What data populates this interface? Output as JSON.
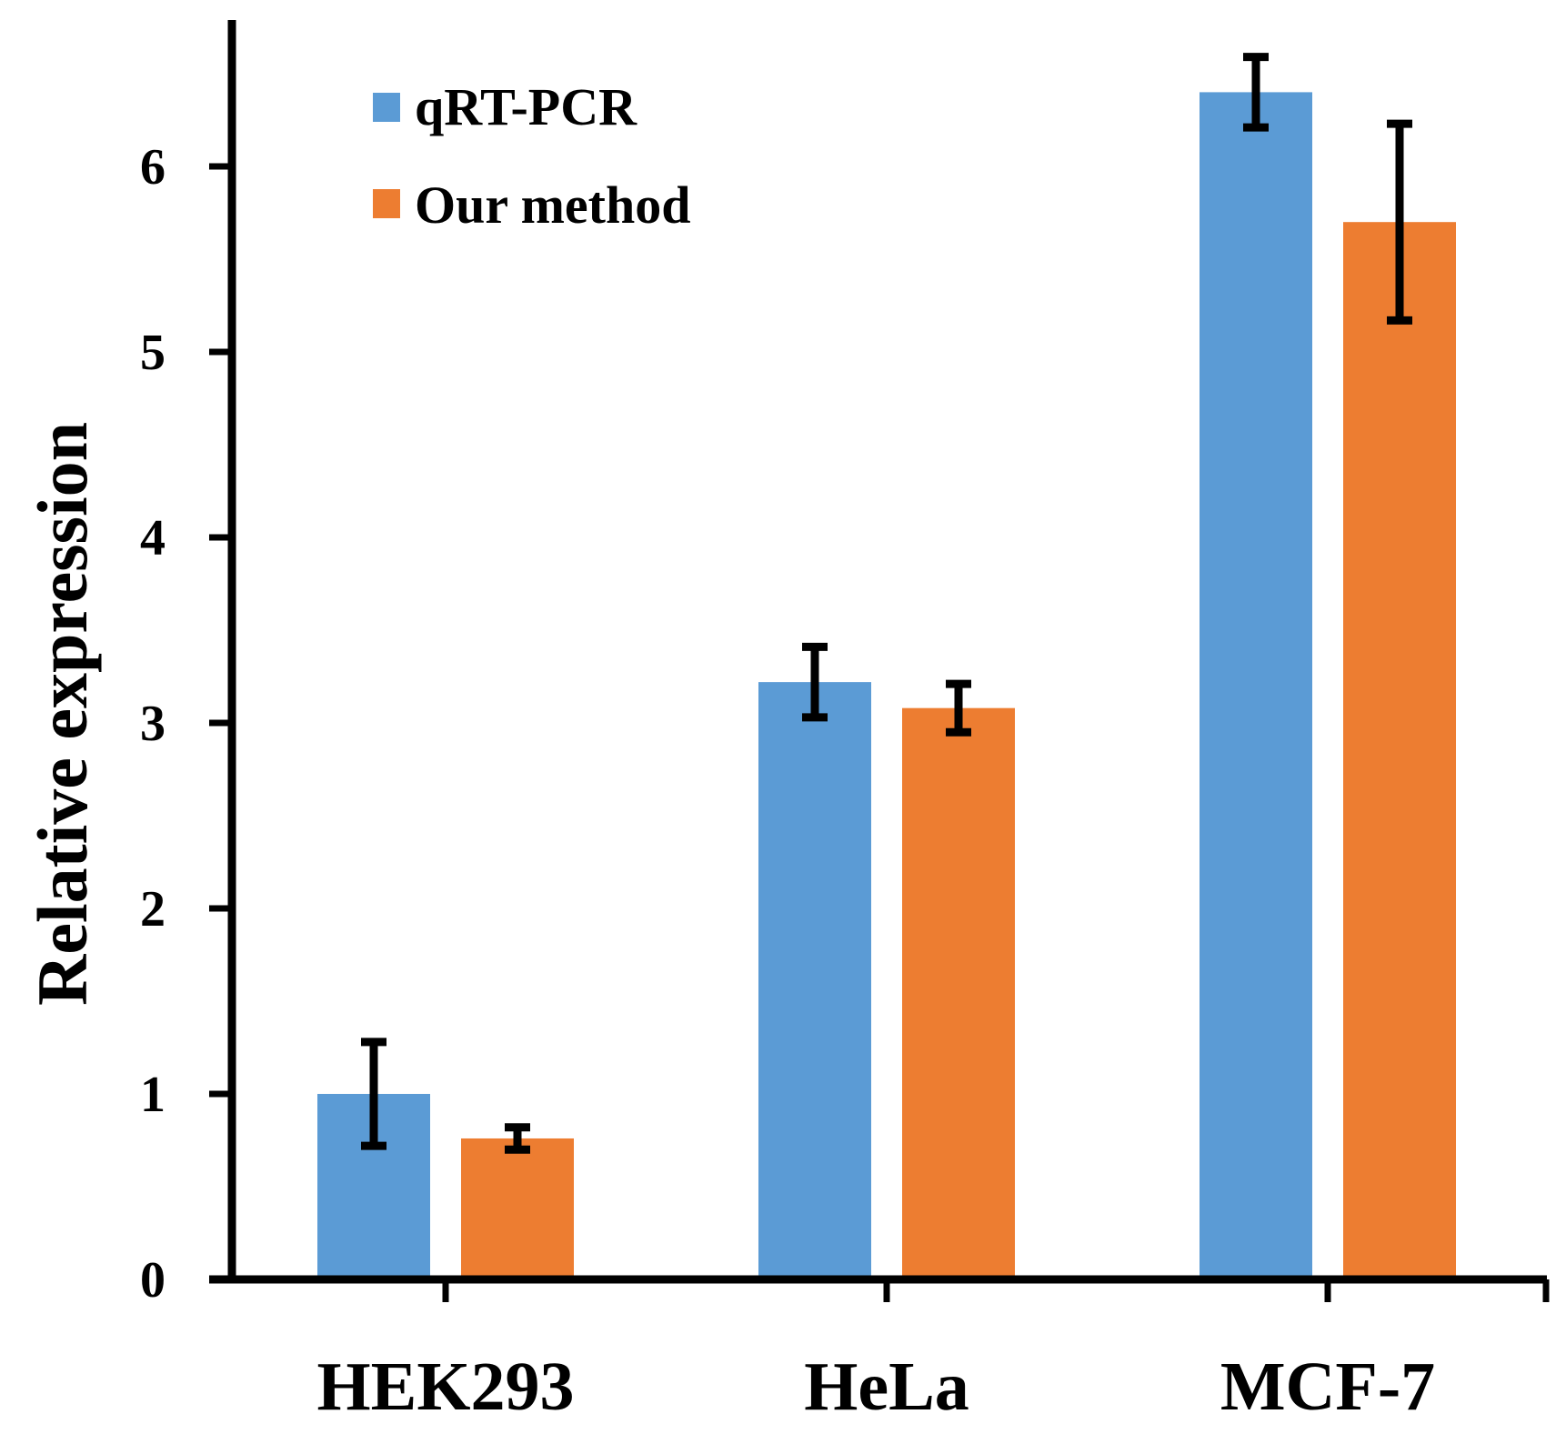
{
  "chart_data": {
    "type": "bar",
    "title": "",
    "xlabel": "",
    "ylabel": "Relative expression",
    "ylim": [
      0,
      6.8
    ],
    "yticks": [
      0,
      1,
      2,
      3,
      4,
      5,
      6
    ],
    "ytick_labels": [
      "0",
      "1",
      "2",
      "3",
      "4",
      "5",
      "6"
    ],
    "grid": false,
    "legend_position": "top-left",
    "categories": [
      "HEK293",
      "HeLa",
      "MCF-7"
    ],
    "series": [
      {
        "name": "qRT-PCR",
        "color": "#5B9BD5",
        "values": [
          1.0,
          3.22,
          6.4
        ],
        "error": [
          0.28,
          0.19,
          0.19
        ]
      },
      {
        "name": "Our method",
        "color": "#ED7D31",
        "values": [
          0.76,
          3.08,
          5.7
        ],
        "error": [
          0.06,
          0.13,
          0.53
        ]
      }
    ]
  }
}
